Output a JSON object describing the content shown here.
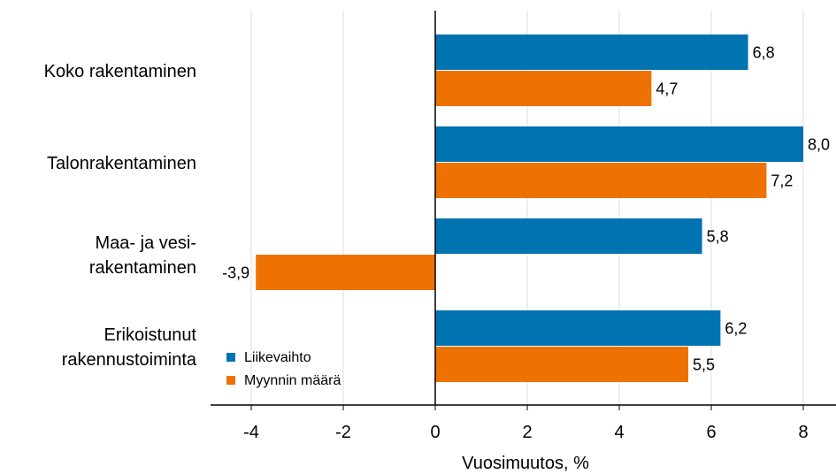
{
  "chart_data": {
    "type": "bar",
    "orientation": "horizontal",
    "categories": [
      [
        "Koko rakentaminen"
      ],
      [
        "Talonrakentaminen"
      ],
      [
        "Maa- ja vesi-",
        "rakentaminen"
      ],
      [
        "Erikoistunut",
        "rakennustoiminta"
      ]
    ],
    "series": [
      {
        "name": "Liikevaihto",
        "color": "#0073b0",
        "values": [
          6.8,
          8.0,
          5.8,
          6.2
        ],
        "labels": [
          "6,8",
          "8,0",
          "5,8",
          "6,2"
        ]
      },
      {
        "name": "Myynnin määrä",
        "color": "#ee7203",
        "values": [
          4.7,
          7.2,
          -3.9,
          5.5
        ],
        "labels": [
          "4,7",
          "7,2",
          "-3,9",
          "5,5"
        ]
      }
    ],
    "xlabel": "Vuosimuutos, %",
    "ylabel": "",
    "xlim": [
      -4.7,
      8.7
    ],
    "xticks": [
      -4,
      -2,
      0,
      2,
      4,
      6,
      8
    ],
    "xtick_labels": [
      "-4",
      "-2",
      "0",
      "2",
      "4",
      "6",
      "8"
    ],
    "grid": "vertical",
    "legend_position": "bottom-left"
  }
}
